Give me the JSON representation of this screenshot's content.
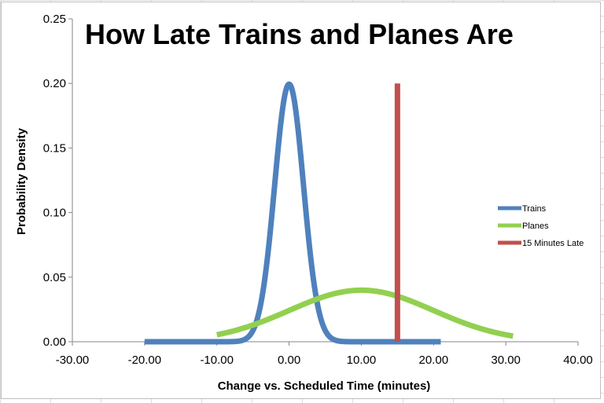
{
  "chart_data": {
    "type": "line",
    "title": "How Late Trains and Planes Are",
    "xlabel": "Change vs. Scheduled Time (minutes)",
    "ylabel": "Probability  Density",
    "xlim": [
      -30,
      40
    ],
    "ylim": [
      0,
      0.25
    ],
    "x_ticks": [
      "-30.00",
      "-20.00",
      "-10.00",
      "0.00",
      "10.00",
      "20.00",
      "30.00",
      "40.00"
    ],
    "y_ticks": [
      "0.00",
      "0.05",
      "0.10",
      "0.15",
      "0.20",
      "0.25"
    ],
    "legend_position": "right",
    "grid": false,
    "series": [
      {
        "name": "Trains",
        "color": "#4f81bd",
        "distribution": "normal",
        "mean": 0,
        "sd": 2,
        "x_range": [
          -20,
          21
        ]
      },
      {
        "name": "Planes",
        "color": "#92d050",
        "distribution": "normal",
        "mean": 10,
        "sd": 10,
        "x_range": [
          -10,
          31
        ]
      },
      {
        "name": "15 Minutes Late",
        "color": "#c0504d",
        "x": [
          15,
          15
        ],
        "y": [
          0,
          0.2
        ]
      }
    ]
  }
}
